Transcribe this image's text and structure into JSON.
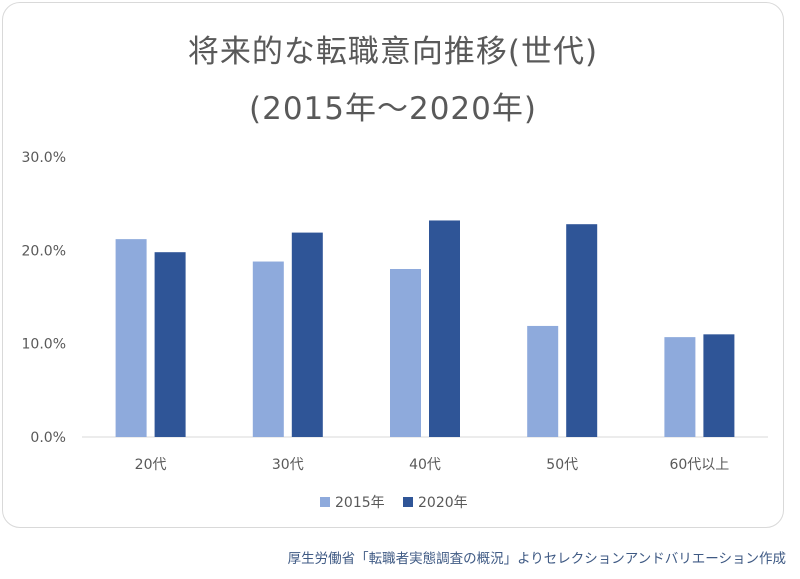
{
  "chart_data": {
    "type": "bar",
    "title": "将来的な転職意向推移(世代)",
    "subtitle": "(2015年～2020年)",
    "categories": [
      "20代",
      "30代",
      "40代",
      "50代",
      "60代以上"
    ],
    "series": [
      {
        "name": "2015年",
        "color": "#8eaadc",
        "values": [
          21.2,
          18.8,
          18.0,
          11.9,
          10.7
        ]
      },
      {
        "name": "2020年",
        "color": "#2f5597",
        "values": [
          19.8,
          21.9,
          23.2,
          22.8,
          11.0
        ]
      }
    ],
    "ylim": [
      0,
      30
    ],
    "yticks": [
      "0.0%",
      "10.0%",
      "20.0%",
      "30.0%"
    ],
    "ytick_values": [
      0,
      10,
      20,
      30
    ],
    "grid": false,
    "legend_position": "bottom",
    "xlabel": "",
    "ylabel": ""
  },
  "source_note": "厚生労働省「転職者実態調査の概況」よりセレクションアンドバリエーション作成"
}
